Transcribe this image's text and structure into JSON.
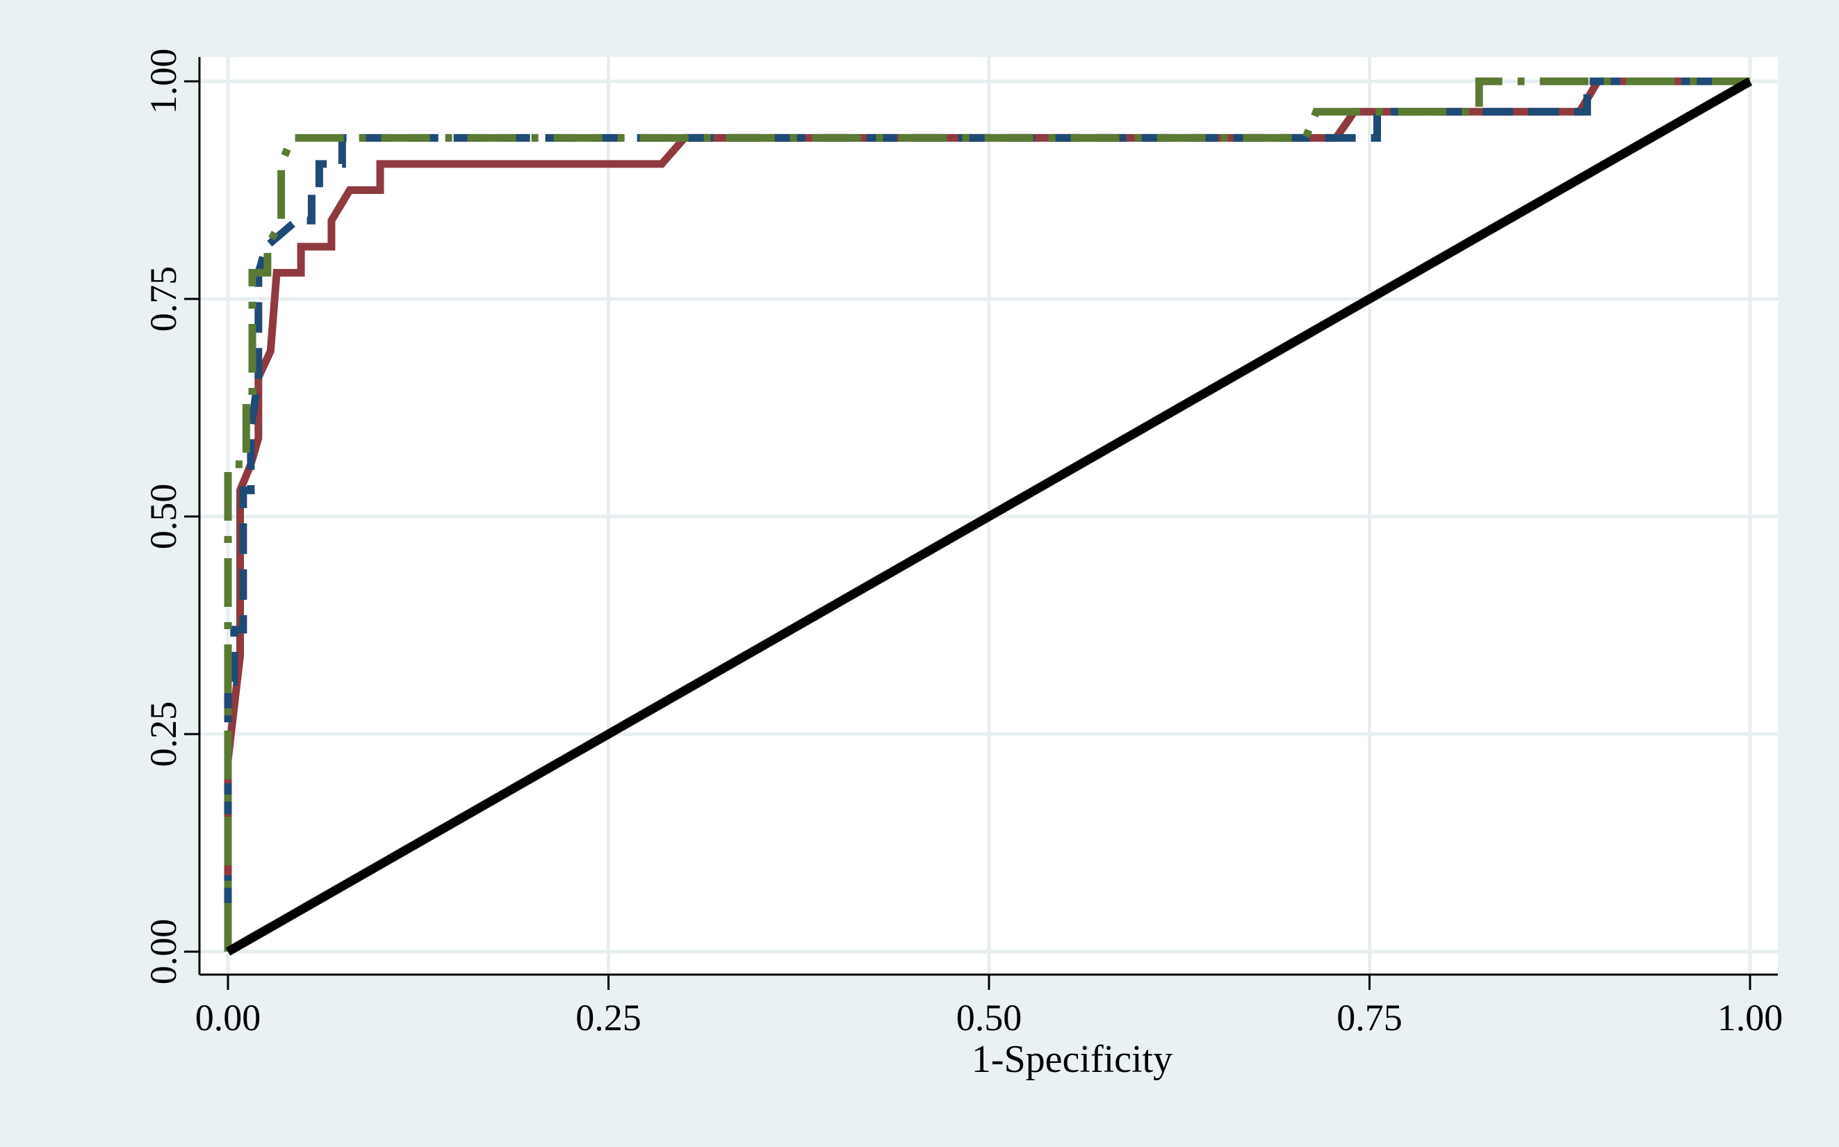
{
  "chart_data": {
    "type": "line",
    "xlabel": "1-Specificity",
    "ylabel": "",
    "xlim": [
      0,
      1
    ],
    "ylim": [
      0,
      1
    ],
    "x_ticks": [
      "0.00",
      "0.25",
      "0.50",
      "0.75",
      "1.00"
    ],
    "y_ticks": [
      "0.00",
      "0.25",
      "0.50",
      "0.75",
      "1.00"
    ],
    "grid": true,
    "legend": "none",
    "colors": {
      "background": "#eaf1f3",
      "plot_bg": "#ffffff",
      "grid": "#e6eef0",
      "reference": "#000000"
    },
    "series": [
      {
        "color": "#8e3a3f",
        "style": "solid",
        "points": [
          [
            0,
            0
          ],
          [
            0,
            0.22
          ],
          [
            0.008,
            0.34
          ],
          [
            0.008,
            0.53
          ],
          [
            0.015,
            0.56
          ],
          [
            0.02,
            0.59
          ],
          [
            0.02,
            0.66
          ],
          [
            0.028,
            0.69
          ],
          [
            0.032,
            0.78
          ],
          [
            0.048,
            0.78
          ],
          [
            0.048,
            0.81
          ],
          [
            0.068,
            0.81
          ],
          [
            0.068,
            0.84
          ],
          [
            0.08,
            0.875
          ],
          [
            0.1,
            0.875
          ],
          [
            0.1,
            0.905
          ],
          [
            0.285,
            0.905
          ],
          [
            0.3,
            0.935
          ],
          [
            0.728,
            0.935
          ],
          [
            0.74,
            0.965
          ],
          [
            0.888,
            0.965
          ],
          [
            0.9,
            1.0
          ],
          [
            1.0,
            1.0
          ]
        ]
      },
      {
        "color": "#1f4a75",
        "style": "dashed",
        "points": [
          [
            0,
            0
          ],
          [
            0,
            0.31
          ],
          [
            0.004,
            0.31
          ],
          [
            0.004,
            0.37
          ],
          [
            0.01,
            0.37
          ],
          [
            0.01,
            0.53
          ],
          [
            0.015,
            0.53
          ],
          [
            0.015,
            0.6
          ],
          [
            0.02,
            0.66
          ],
          [
            0.02,
            0.78
          ],
          [
            0.025,
            0.81
          ],
          [
            0.045,
            0.84
          ],
          [
            0.055,
            0.84
          ],
          [
            0.055,
            0.875
          ],
          [
            0.06,
            0.875
          ],
          [
            0.06,
            0.905
          ],
          [
            0.075,
            0.905
          ],
          [
            0.075,
            0.935
          ],
          [
            0.728,
            0.935
          ],
          [
            0.728,
            0.935
          ],
          [
            0.755,
            0.935
          ],
          [
            0.755,
            0.965
          ],
          [
            0.893,
            0.965
          ],
          [
            0.893,
            1.0
          ],
          [
            1.0,
            1.0
          ]
        ]
      },
      {
        "color": "#5a7a34",
        "style": "dashdot",
        "points": [
          [
            0,
            0
          ],
          [
            0,
            0.56
          ],
          [
            0.012,
            0.56
          ],
          [
            0.012,
            0.63
          ],
          [
            0.016,
            0.63
          ],
          [
            0.016,
            0.78
          ],
          [
            0.026,
            0.78
          ],
          [
            0.026,
            0.81
          ],
          [
            0.035,
            0.84
          ],
          [
            0.035,
            0.905
          ],
          [
            0.042,
            0.935
          ],
          [
            0.708,
            0.935
          ],
          [
            0.715,
            0.965
          ],
          [
            0.822,
            0.965
          ],
          [
            0.822,
            1.0
          ],
          [
            1.0,
            1.0
          ]
        ]
      },
      {
        "color": "#000000",
        "style": "solid",
        "points": [
          [
            0,
            0
          ],
          [
            1,
            1
          ]
        ]
      }
    ]
  }
}
